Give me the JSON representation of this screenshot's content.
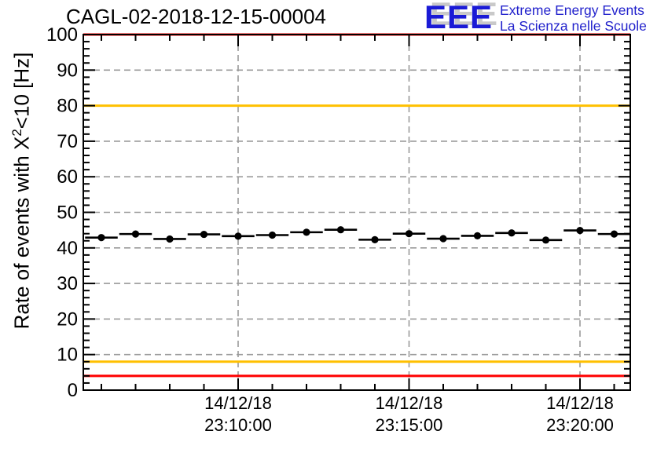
{
  "title": "CAGL-02-2018-12-15-00004",
  "logo": {
    "acronym": "EEE",
    "line1": "Extreme Energy Events",
    "line2": "La Scienza nelle Scuole",
    "blue": "#2222cc",
    "shadow_gray": "#c9c9c9"
  },
  "y_axis": {
    "label_pre": "Rate of events with X",
    "label_sup": "2",
    "label_post": "<10 [Hz]",
    "min": 0,
    "max": 100,
    "major_step": 10,
    "minor_step": 2,
    "tick_labels": [
      "0",
      "10",
      "20",
      "30",
      "40",
      "50",
      "60",
      "70",
      "80",
      "90",
      "100"
    ]
  },
  "x_axis": {
    "major_ticks": [
      {
        "date": "14/12/18",
        "time": "23:10:00"
      },
      {
        "date": "14/12/18",
        "time": "23:15:00"
      },
      {
        "date": "14/12/18",
        "time": "23:20:00"
      }
    ]
  },
  "chart_data": {
    "type": "scatter",
    "title": "CAGL-02-2018-12-15-00004",
    "ylabel": "Rate of events with X^2<10 [Hz]",
    "ylim": [
      0,
      100
    ],
    "date": "14/12/18",
    "x": [
      "23:06:00",
      "23:07:00",
      "23:08:00",
      "23:09:00",
      "23:10:00",
      "23:11:00",
      "23:12:00",
      "23:13:00",
      "23:14:00",
      "23:15:00",
      "23:16:00",
      "23:17:00",
      "23:18:00",
      "23:19:00",
      "23:20:00",
      "23:21:00"
    ],
    "values": [
      42.9,
      43.9,
      42.5,
      43.8,
      43.3,
      43.6,
      44.4,
      45.1,
      42.3,
      44.0,
      42.6,
      43.4,
      44.2,
      42.2,
      44.9,
      43.9
    ],
    "x_bin_width_seconds": 60,
    "marker": "filled-circle-with-horizontal-error-bar",
    "thresholds": {
      "red": [
        4,
        100
      ],
      "orange": [
        8,
        80
      ]
    },
    "grid": {
      "horizontal_every_hz": 10,
      "vertical_at": [
        "23:10:00",
        "23:15:00",
        "23:20:00"
      ],
      "style": "dashed-gray"
    },
    "colors": {
      "red_threshold": "#ff0000",
      "orange_threshold": "#ffc000",
      "grid": "#9a9a9a",
      "marker": "#000000",
      "frame": "#000000"
    },
    "legend_position": "none"
  }
}
